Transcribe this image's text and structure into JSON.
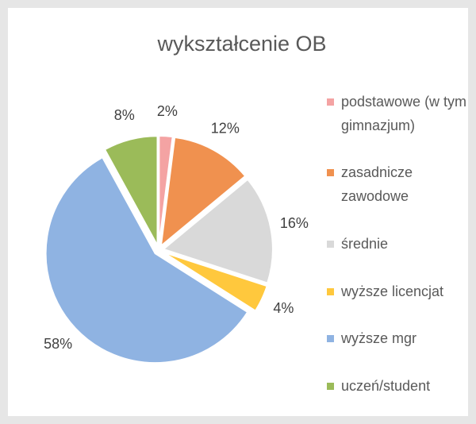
{
  "chart_data": {
    "type": "pie",
    "title": "wykształcenie OB",
    "categories": [
      "podstawowe (w tym gimnazjum)",
      "zasadnicze zawodowe",
      "średnie",
      "wyższe licencjat",
      "wyższe mgr",
      "uczeń/student"
    ],
    "values": [
      2,
      12,
      16,
      4,
      58,
      8
    ],
    "value_labels": [
      "2%",
      "12%",
      "16%",
      "4%",
      "58%",
      "8%"
    ],
    "colors": [
      "#f4a3a3",
      "#f0914f",
      "#d9d9d9",
      "#ffc83d",
      "#8fb3e2",
      "#9bbb59"
    ],
    "legend": "right"
  }
}
